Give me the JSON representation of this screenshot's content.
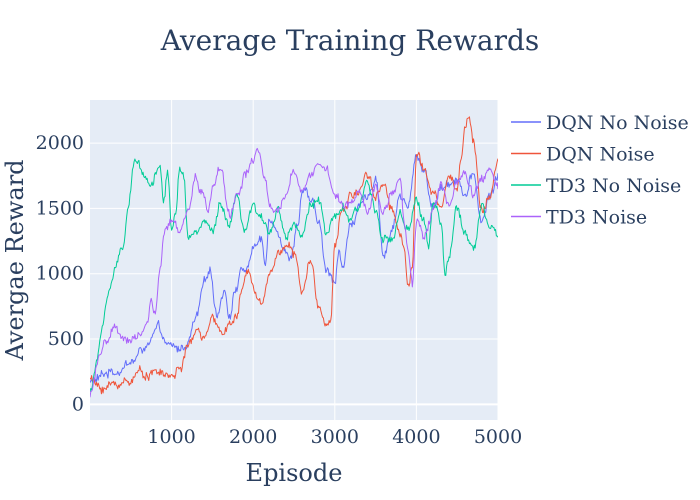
{
  "chart_data": {
    "type": "line",
    "title": "Average Training Rewards",
    "xlabel": "Episode",
    "ylabel": "Avergae Reward",
    "xlim": [
      0,
      5000
    ],
    "ylim": [
      -120,
      2330
    ],
    "xticks": [
      1000,
      2000,
      3000,
      4000,
      5000
    ],
    "xtick_labels": [
      "1000",
      "2000",
      "3000",
      "4000",
      "5000"
    ],
    "yticks": [
      0,
      500,
      1000,
      1500,
      2000
    ],
    "ytick_labels": [
      "0",
      "500",
      "1000",
      "1500",
      "2000"
    ],
    "grid": true,
    "legend_position": "right",
    "series": [
      {
        "name": "DQN No Noise",
        "color": "#636efa",
        "keypoints": [
          [
            0,
            170
          ],
          [
            300,
            260
          ],
          [
            500,
            320
          ],
          [
            700,
            450
          ],
          [
            850,
            560
          ],
          [
            950,
            430
          ],
          [
            1100,
            420
          ],
          [
            1200,
            480
          ],
          [
            1300,
            650
          ],
          [
            1400,
            900
          ],
          [
            1470,
            1040
          ],
          [
            1550,
            700
          ],
          [
            1650,
            900
          ],
          [
            1700,
            700
          ],
          [
            1800,
            900
          ],
          [
            1850,
            1050
          ],
          [
            1900,
            1000
          ],
          [
            2000,
            1200
          ],
          [
            2100,
            1250
          ],
          [
            2150,
            1050
          ],
          [
            2200,
            1450
          ],
          [
            2300,
            1350
          ],
          [
            2400,
            1200
          ],
          [
            2450,
            1100
          ],
          [
            2550,
            1400
          ],
          [
            2600,
            1650
          ],
          [
            2700,
            1550
          ],
          [
            2800,
            1400
          ],
          [
            2900,
            1000
          ],
          [
            3000,
            950
          ],
          [
            3050,
            1200
          ],
          [
            3100,
            1050
          ],
          [
            3200,
            1400
          ],
          [
            3300,
            1500
          ],
          [
            3400,
            1550
          ],
          [
            3500,
            1750
          ],
          [
            3600,
            1150
          ],
          [
            3700,
            1350
          ],
          [
            3800,
            1600
          ],
          [
            3900,
            1500
          ],
          [
            4000,
            1900
          ],
          [
            4100,
            1800
          ],
          [
            4200,
            1500
          ],
          [
            4300,
            1650
          ],
          [
            4400,
            1700
          ],
          [
            4500,
            1750
          ],
          [
            4600,
            1600
          ],
          [
            4700,
            1750
          ],
          [
            4800,
            1400
          ],
          [
            4900,
            1600
          ],
          [
            5000,
            1750
          ]
        ]
      },
      {
        "name": "DQN Noise",
        "color": "#ef553b",
        "keypoints": [
          [
            0,
            200
          ],
          [
            100,
            130
          ],
          [
            250,
            140
          ],
          [
            450,
            180
          ],
          [
            600,
            240
          ],
          [
            800,
            250
          ],
          [
            1000,
            210
          ],
          [
            1100,
            280
          ],
          [
            1200,
            420
          ],
          [
            1300,
            560
          ],
          [
            1400,
            520
          ],
          [
            1500,
            620
          ],
          [
            1600,
            560
          ],
          [
            1700,
            620
          ],
          [
            1800,
            650
          ],
          [
            1850,
            850
          ],
          [
            1950,
            1000
          ],
          [
            2050,
            880
          ],
          [
            2100,
            800
          ],
          [
            2200,
            1000
          ],
          [
            2300,
            1150
          ],
          [
            2400,
            1250
          ],
          [
            2500,
            1150
          ],
          [
            2600,
            850
          ],
          [
            2700,
            1100
          ],
          [
            2800,
            750
          ],
          [
            2900,
            650
          ],
          [
            2950,
            620
          ],
          [
            3000,
            1200
          ],
          [
            3100,
            1500
          ],
          [
            3200,
            1600
          ],
          [
            3300,
            1650
          ],
          [
            3400,
            1800
          ],
          [
            3500,
            1600
          ],
          [
            3600,
            1700
          ],
          [
            3700,
            1500
          ],
          [
            3800,
            1300
          ],
          [
            3850,
            1200
          ],
          [
            3900,
            950
          ],
          [
            3950,
            1100
          ],
          [
            4000,
            1900
          ],
          [
            4100,
            1800
          ],
          [
            4200,
            1600
          ],
          [
            4300,
            1500
          ],
          [
            4400,
            1750
          ],
          [
            4500,
            1650
          ],
          [
            4550,
            1900
          ],
          [
            4600,
            2150
          ],
          [
            4650,
            2200
          ],
          [
            4700,
            2000
          ],
          [
            4800,
            1500
          ],
          [
            4900,
            1600
          ],
          [
            5000,
            1850
          ]
        ]
      },
      {
        "name": "TD3 No Noise",
        "color": "#00cc96",
        "keypoints": [
          [
            0,
            100
          ],
          [
            80,
            300
          ],
          [
            150,
            600
          ],
          [
            220,
            850
          ],
          [
            300,
            1000
          ],
          [
            400,
            1200
          ],
          [
            470,
            1500
          ],
          [
            550,
            1850
          ],
          [
            650,
            1800
          ],
          [
            750,
            1700
          ],
          [
            850,
            1850
          ],
          [
            900,
            1550
          ],
          [
            950,
            1800
          ],
          [
            1000,
            1350
          ],
          [
            1050,
            1500
          ],
          [
            1100,
            1850
          ],
          [
            1150,
            1800
          ],
          [
            1200,
            1300
          ],
          [
            1300,
            1300
          ],
          [
            1400,
            1400
          ],
          [
            1500,
            1300
          ],
          [
            1600,
            1500
          ],
          [
            1700,
            1350
          ],
          [
            1800,
            1550
          ],
          [
            1900,
            1300
          ],
          [
            2000,
            1500
          ],
          [
            2100,
            1400
          ],
          [
            2200,
            1350
          ],
          [
            2300,
            1500
          ],
          [
            2400,
            1300
          ],
          [
            2500,
            1400
          ],
          [
            2600,
            1300
          ],
          [
            2700,
            1500
          ],
          [
            2800,
            1600
          ],
          [
            2900,
            1300
          ],
          [
            3000,
            1400
          ],
          [
            3100,
            1500
          ],
          [
            3200,
            1400
          ],
          [
            3300,
            1500
          ],
          [
            3400,
            1700
          ],
          [
            3500,
            1500
          ],
          [
            3600,
            1300
          ],
          [
            3700,
            1250
          ],
          [
            3800,
            1450
          ],
          [
            3900,
            1300
          ],
          [
            4000,
            1550
          ],
          [
            4100,
            1400
          ],
          [
            4150,
            1200
          ],
          [
            4200,
            1550
          ],
          [
            4300,
            1400
          ],
          [
            4350,
            1000
          ],
          [
            4400,
            1100
          ],
          [
            4500,
            1500
          ],
          [
            4600,
            1300
          ],
          [
            4700,
            1200
          ],
          [
            4800,
            1550
          ],
          [
            4900,
            1350
          ],
          [
            5000,
            1300
          ]
        ]
      },
      {
        "name": "TD3 Noise",
        "color": "#ab63fa",
        "keypoints": [
          [
            0,
            60
          ],
          [
            100,
            300
          ],
          [
            200,
            500
          ],
          [
            300,
            580
          ],
          [
            400,
            450
          ],
          [
            500,
            500
          ],
          [
            600,
            550
          ],
          [
            700,
            600
          ],
          [
            750,
            800
          ],
          [
            800,
            700
          ],
          [
            850,
            1000
          ],
          [
            920,
            1300
          ],
          [
            1000,
            1400
          ],
          [
            1050,
            1350
          ],
          [
            1100,
            1300
          ],
          [
            1200,
            1450
          ],
          [
            1300,
            1750
          ],
          [
            1350,
            1650
          ],
          [
            1450,
            1500
          ],
          [
            1500,
            1650
          ],
          [
            1600,
            1800
          ],
          [
            1700,
            1450
          ],
          [
            1800,
            1600
          ],
          [
            1900,
            1750
          ],
          [
            2000,
            1850
          ],
          [
            2050,
            1950
          ],
          [
            2150,
            1700
          ],
          [
            2200,
            1500
          ],
          [
            2300,
            1450
          ],
          [
            2400,
            1600
          ],
          [
            2500,
            1800
          ],
          [
            2600,
            1650
          ],
          [
            2700,
            1750
          ],
          [
            2800,
            1850
          ],
          [
            2900,
            1800
          ],
          [
            3000,
            1600
          ],
          [
            3100,
            1500
          ],
          [
            3200,
            1550
          ],
          [
            3300,
            1650
          ],
          [
            3400,
            1500
          ],
          [
            3500,
            1700
          ],
          [
            3600,
            1450
          ],
          [
            3700,
            1600
          ],
          [
            3800,
            1750
          ],
          [
            3850,
            1400
          ],
          [
            3900,
            1150
          ],
          [
            3950,
            900
          ],
          [
            4000,
            1400
          ],
          [
            4100,
            1300
          ],
          [
            4200,
            1500
          ],
          [
            4300,
            1650
          ],
          [
            4400,
            1550
          ],
          [
            4500,
            1700
          ],
          [
            4600,
            1750
          ],
          [
            4700,
            1600
          ],
          [
            4800,
            1700
          ],
          [
            4900,
            1800
          ],
          [
            5000,
            1650
          ]
        ]
      }
    ]
  }
}
